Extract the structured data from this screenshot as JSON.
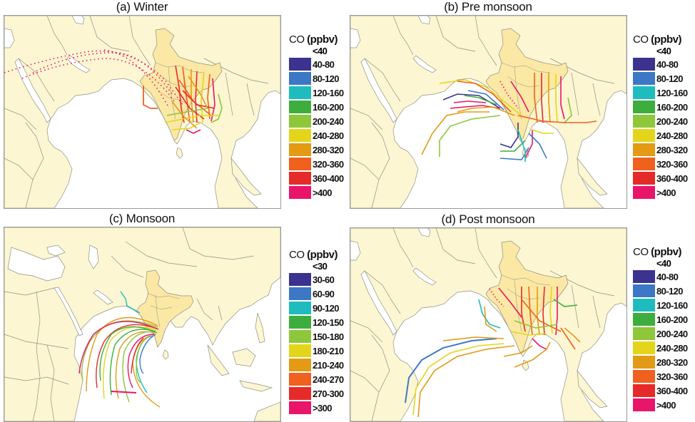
{
  "figure": {
    "panels": [
      {
        "id": "a",
        "title": "(a) Winter",
        "legend": {
          "title_prefix": "CO",
          "title_unit": "(ppbv)",
          "lowest": "<40",
          "bins": [
            {
              "label": "40-80",
              "color": "#3b338f"
            },
            {
              "label": "80-120",
              "color": "#3c78c6"
            },
            {
              "label": "120-160",
              "color": "#1fbcbf"
            },
            {
              "label": "160-200",
              "color": "#3dae3d"
            },
            {
              "label": "200-240",
              "color": "#8ec73a"
            },
            {
              "label": "240-280",
              "color": "#e3d61a"
            },
            {
              "label": "280-320",
              "color": "#e39a15"
            },
            {
              "label": "320-360",
              "color": "#f0601e"
            },
            {
              "label": "360-400",
              "color": "#e62a2a"
            },
            {
              "label": ">400",
              "color": "#e8156a"
            }
          ]
        }
      },
      {
        "id": "b",
        "title": "(b) Pre monsoon",
        "legend": {
          "title_prefix": "CO",
          "title_unit": "(ppbv)",
          "lowest": "<40",
          "bins": [
            {
              "label": "40-80",
              "color": "#3b338f"
            },
            {
              "label": "80-120",
              "color": "#3c78c6"
            },
            {
              "label": "120-160",
              "color": "#1fbcbf"
            },
            {
              "label": "160-200",
              "color": "#3dae3d"
            },
            {
              "label": "200-240",
              "color": "#8ec73a"
            },
            {
              "label": "240-280",
              "color": "#e3d61a"
            },
            {
              "label": "280-320",
              "color": "#e39a15"
            },
            {
              "label": "320-360",
              "color": "#f0601e"
            },
            {
              "label": "360-400",
              "color": "#e62a2a"
            },
            {
              "label": ">400",
              "color": "#e8156a"
            }
          ]
        }
      },
      {
        "id": "c",
        "title": "(c) Monsoon",
        "legend": {
          "title_prefix": "CO",
          "title_unit": "(ppbv)",
          "lowest": "<30",
          "bins": [
            {
              "label": "30-60",
              "color": "#3b338f"
            },
            {
              "label": "60-90",
              "color": "#3c78c6"
            },
            {
              "label": "90-120",
              "color": "#1fbcbf"
            },
            {
              "label": "120-150",
              "color": "#3dae3d"
            },
            {
              "label": "150-180",
              "color": "#8ec73a"
            },
            {
              "label": "180-210",
              "color": "#e3d61a"
            },
            {
              "label": "210-240",
              "color": "#e39a15"
            },
            {
              "label": "240-270",
              "color": "#f0601e"
            },
            {
              "label": "270-300",
              "color": "#e62a2a"
            },
            {
              "label": ">300",
              "color": "#e8156a"
            }
          ]
        }
      },
      {
        "id": "d",
        "title": "(d) Post monsoon",
        "legend": {
          "title_prefix": "CO",
          "title_unit": "(ppbv)",
          "lowest": "<40",
          "bins": [
            {
              "label": "40-80",
              "color": "#3b338f"
            },
            {
              "label": "80-120",
              "color": "#3c78c6"
            },
            {
              "label": "120-160",
              "color": "#1fbcbf"
            },
            {
              "label": "160-200",
              "color": "#3dae3d"
            },
            {
              "label": "200-240",
              "color": "#8ec73a"
            },
            {
              "label": "240-280",
              "color": "#e3d61a"
            },
            {
              "label": "280-320",
              "color": "#e39a15"
            },
            {
              "label": "320-360",
              "color": "#f0601e"
            },
            {
              "label": "360-400",
              "color": "#e62a2a"
            },
            {
              "label": ">400",
              "color": "#e8156a"
            }
          ]
        }
      }
    ],
    "colors": {
      "land": "#fdf6d2",
      "india": "#fbe8a4",
      "ocean": "#ffffff",
      "border": "#8f8f86",
      "frame": "#9a9a9a"
    }
  },
  "chart_data": [
    {
      "type": "map",
      "title": "(a) Winter",
      "variable": "CO (ppbv)",
      "legend_bins": [
        "<40",
        "40-80",
        "80-120",
        "120-160",
        "160-200",
        "200-240",
        "240-280",
        "280-320",
        "320-360",
        "360-400",
        ">400"
      ],
      "description": "Back trajectories concentrated over eastern India / Bay of Bengal region; dominant CO 280->400 ppbv (orange-red-magenta), with long magenta (>400) dotted paths from Arabia/Middle East arcing into central India; a few green/yellow segments near the Bay of Bengal."
    },
    {
      "type": "map",
      "title": "(b) Pre monsoon",
      "variable": "CO (ppbv)",
      "legend_bins": [
        "<40",
        "40-80",
        "80-120",
        "120-160",
        "160-200",
        "200-240",
        "240-280",
        "280-320",
        "320-360",
        "360-400",
        ">400"
      ],
      "description": "Trajectories over eastern India/Bay of Bengal mostly 280-400 ppbv; additional paths over Arabian Sea and southern Indian Ocean with lower values (40-240 ppbv, blue/cyan/green/purple); orange paths extending east toward Myanmar."
    },
    {
      "type": "map",
      "title": "(c) Monsoon",
      "variable": "CO (ppbv)",
      "legend_bins": [
        "<30",
        "30-60",
        "60-90",
        "90-120",
        "120-150",
        "150-180",
        "180-210",
        "210-240",
        "240-270",
        "270-300",
        ">300"
      ],
      "description": "Larger map extent (Europe to East Asia). Trajectories arc from southern India across the Arabian Sea toward the Somali coast and southern Indian Ocean; mixed colors mainly 150-300 ppbv (green, yellow, orange, red) with some cyan/blue/magenta."
    },
    {
      "type": "map",
      "title": "(d) Post monsoon",
      "variable": "CO (ppbv)",
      "legend_bins": [
        "<40",
        "40-80",
        "80-120",
        "120-160",
        "160-200",
        "200-240",
        "240-280",
        "280-320",
        "320-360",
        "360-400",
        ">400"
      ],
      "description": "Dense trajectories over eastern India mostly 280-400 ppbv; long arcs over Arabian Sea curving south toward equatorial Indian Ocean in blue (80-120), yellow and orange; cyan/green near west coast of India."
    }
  ]
}
